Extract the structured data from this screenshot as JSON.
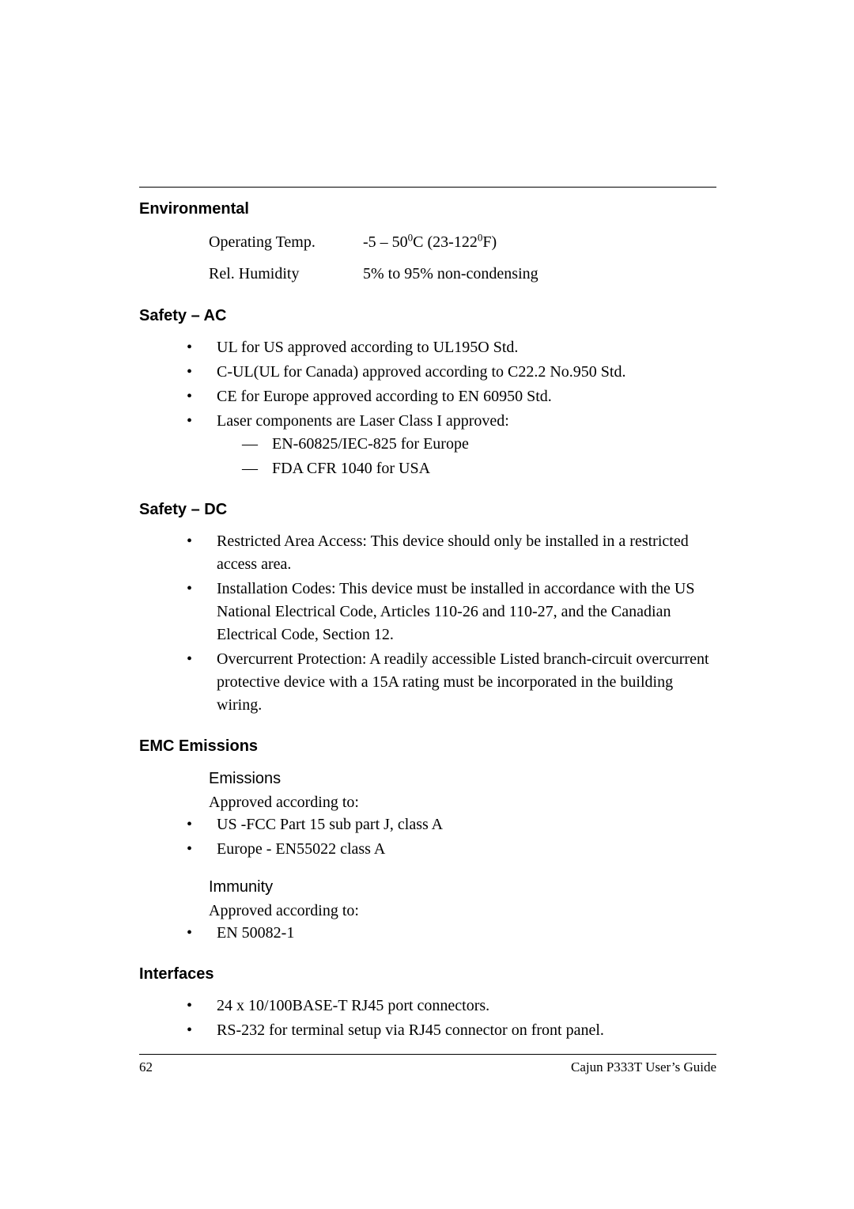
{
  "environmental": {
    "heading": "Environmental",
    "rows": [
      {
        "label": "Operating Temp.",
        "value_html": "-5 – 50<sup>0</sup>C (23-122<sup>0</sup>F)"
      },
      {
        "label": "Rel. Humidity",
        "value_html": "5% to 95% non-condensing"
      }
    ]
  },
  "safety_ac": {
    "heading": "Safety – AC",
    "items": [
      "UL for US approved according to UL195O Std.",
      "C-UL(UL for Canada) approved according to C22.2 No.950 Std.",
      "CE for Europe  approved according to EN 60950 Std.",
      "Laser components are Laser Class I approved:"
    ],
    "laser_sub": [
      "EN-60825/IEC-825 for Europe",
      "FDA CFR 1040 for USA"
    ]
  },
  "safety_dc": {
    "heading": "Safety – DC",
    "items": [
      "Restricted Area Access: This device should only be installed in a restricted access area.",
      "Installation Codes: This device must be installed in accordance with the US National Electrical Code, Articles 110-26 and 110-27, and the Canadian Electrical Code, Section 12.",
      "Overcurrent Protection: A readily accessible Listed branch-circuit overcurrent protective device with a 15A rating must be incorporated in the building wiring."
    ]
  },
  "emc": {
    "heading": "EMC Emissions",
    "emissions": {
      "sub": "Emissions",
      "lead": "Approved according to:",
      "items": [
        "US -FCC Part 15 sub part J, class A",
        "Europe -  EN55022  class  A"
      ]
    },
    "immunity": {
      "sub": "Immunity",
      "lead": "Approved according to:",
      "items": [
        "EN 50082-1"
      ]
    }
  },
  "interfaces": {
    "heading": "Interfaces",
    "items": [
      "24 x 10/100BASE-T RJ45 port connectors.",
      "RS-232 for terminal setup via RJ45 connector on front panel."
    ]
  },
  "footer": {
    "page": "62",
    "doc": "Cajun P333T User’s Guide"
  }
}
